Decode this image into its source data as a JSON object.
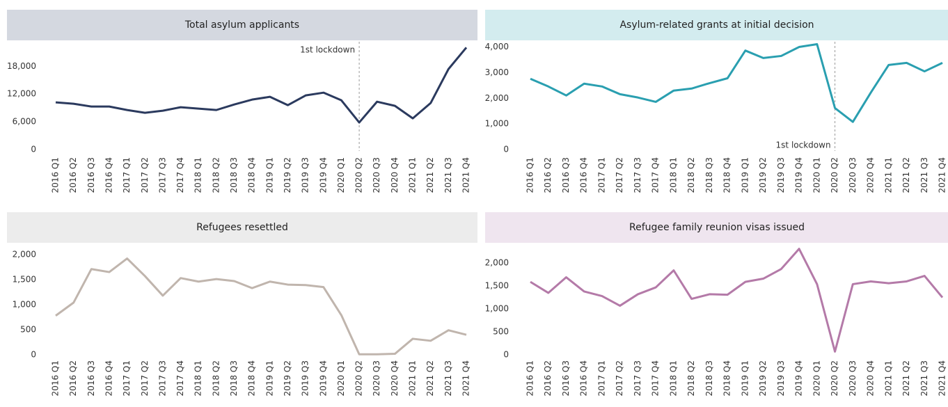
{
  "chart_data": [
    {
      "type": "line",
      "title": "Total asylum applicants",
      "color": "#2b3a5e",
      "categories": [
        "2016 Q1",
        "2016 Q2",
        "2016 Q3",
        "2016 Q4",
        "2017 Q1",
        "2017 Q2",
        "2017 Q3",
        "2017 Q4",
        "2018 Q1",
        "2018 Q2",
        "2018 Q3",
        "2018 Q4",
        "2019 Q1",
        "2019 Q2",
        "2019 Q3",
        "2019 Q4",
        "2020 Q1",
        "2020 Q2",
        "2020 Q3",
        "2020 Q4",
        "2021 Q1",
        "2021 Q2",
        "2021 Q3",
        "2021 Q4"
      ],
      "values": [
        10200,
        9900,
        9300,
        9300,
        8550,
        7950,
        8400,
        9150,
        8850,
        8550,
        9750,
        10800,
        11400,
        9600,
        11700,
        12300,
        10650,
        5850,
        10350,
        9450,
        6750,
        10050,
        17400,
        22050
      ],
      "ylim": [
        0,
        23000
      ],
      "yticks": [
        0,
        {
          "value": 6000,
          "label": "6,000"
        },
        {
          "value": 12000,
          "label": "12,000"
        },
        {
          "value": 18000,
          "label": "18,000"
        }
      ],
      "annotation": {
        "label": "1st lockdown",
        "x": "2020 Q2"
      }
    },
    {
      "type": "line",
      "title": "Asylum-related grants at initial decision",
      "color": "#2a9fb0",
      "categories": [
        "2016 Q1",
        "2016 Q2",
        "2016 Q3",
        "2016 Q4",
        "2017 Q1",
        "2017 Q2",
        "2017 Q3",
        "2017 Q4",
        "2018 Q1",
        "2018 Q2",
        "2018 Q3",
        "2018 Q4",
        "2019 Q1",
        "2019 Q2",
        "2019 Q3",
        "2019 Q4",
        "2020 Q1",
        "2020 Q2",
        "2020 Q3",
        "2020 Q4",
        "2021 Q1",
        "2021 Q2",
        "2021 Q3",
        "2021 Q4"
      ],
      "values": [
        2760,
        2460,
        2110,
        2570,
        2460,
        2160,
        2030,
        1860,
        2300,
        2380,
        2590,
        2780,
        3860,
        3570,
        3650,
        4000,
        4110,
        1620,
        1080,
        2220,
        3300,
        3380,
        3050,
        3380
      ],
      "ylim": [
        0,
        4150
      ],
      "yticks": [
        0,
        {
          "value": 1000,
          "label": "1,000"
        },
        {
          "value": 2000,
          "label": "2,000"
        },
        {
          "value": 3000,
          "label": "3,000"
        },
        {
          "value": 4000,
          "label": "4,000"
        }
      ],
      "annotation": {
        "label": "1st lockdown",
        "x": "2020 Q2"
      }
    },
    {
      "type": "line",
      "title": "Refugees resettled",
      "color": "#c0b5ad",
      "categories": [
        "2016 Q1",
        "2016 Q2",
        "2016 Q3",
        "2016 Q4",
        "2017 Q1",
        "2017 Q2",
        "2017 Q3",
        "2017 Q4",
        "2018 Q1",
        "2018 Q2",
        "2018 Q3",
        "2018 Q4",
        "2019 Q1",
        "2019 Q2",
        "2019 Q3",
        "2019 Q4",
        "2020 Q1",
        "2020 Q2",
        "2020 Q3",
        "2020 Q4",
        "2021 Q1",
        "2021 Q2",
        "2021 Q3",
        "2021 Q4"
      ],
      "values": [
        780,
        1040,
        1710,
        1650,
        1920,
        1570,
        1180,
        1530,
        1460,
        1510,
        1470,
        1330,
        1460,
        1400,
        1390,
        1350,
        790,
        10,
        10,
        20,
        320,
        280,
        490,
        400
      ],
      "ylim": [
        0,
        2150
      ],
      "yticks": [
        0,
        500,
        {
          "value": 1000,
          "label": "1,000"
        },
        {
          "value": 1500,
          "label": "1,500"
        },
        {
          "value": 2000,
          "label": "2,000"
        }
      ]
    },
    {
      "type": "line",
      "title": "Refugee family reunion visas issued",
      "color": "#b47aa8",
      "categories": [
        "2016 Q1",
        "2016 Q2",
        "2016 Q3",
        "2016 Q4",
        "2017 Q1",
        "2017 Q2",
        "2017 Q3",
        "2017 Q4",
        "2018 Q1",
        "2018 Q2",
        "2018 Q3",
        "2018 Q4",
        "2019 Q1",
        "2019 Q2",
        "2019 Q3",
        "2019 Q4",
        "2020 Q1",
        "2020 Q2",
        "2020 Q3",
        "2020 Q4",
        "2021 Q1",
        "2021 Q2",
        "2021 Q3",
        "2021 Q4"
      ],
      "values": [
        1590,
        1350,
        1690,
        1380,
        1280,
        1070,
        1320,
        1470,
        1840,
        1220,
        1320,
        1310,
        1590,
        1660,
        1870,
        2310,
        1540,
        70,
        1540,
        1600,
        1560,
        1600,
        1720,
        1250
      ],
      "ylim": [
        0,
        2350
      ],
      "yticks": [
        0,
        500,
        {
          "value": 1000,
          "label": "1,000"
        },
        {
          "value": 1500,
          "label": "1,500"
        },
        {
          "value": 2000,
          "label": "2,000"
        }
      ]
    }
  ]
}
